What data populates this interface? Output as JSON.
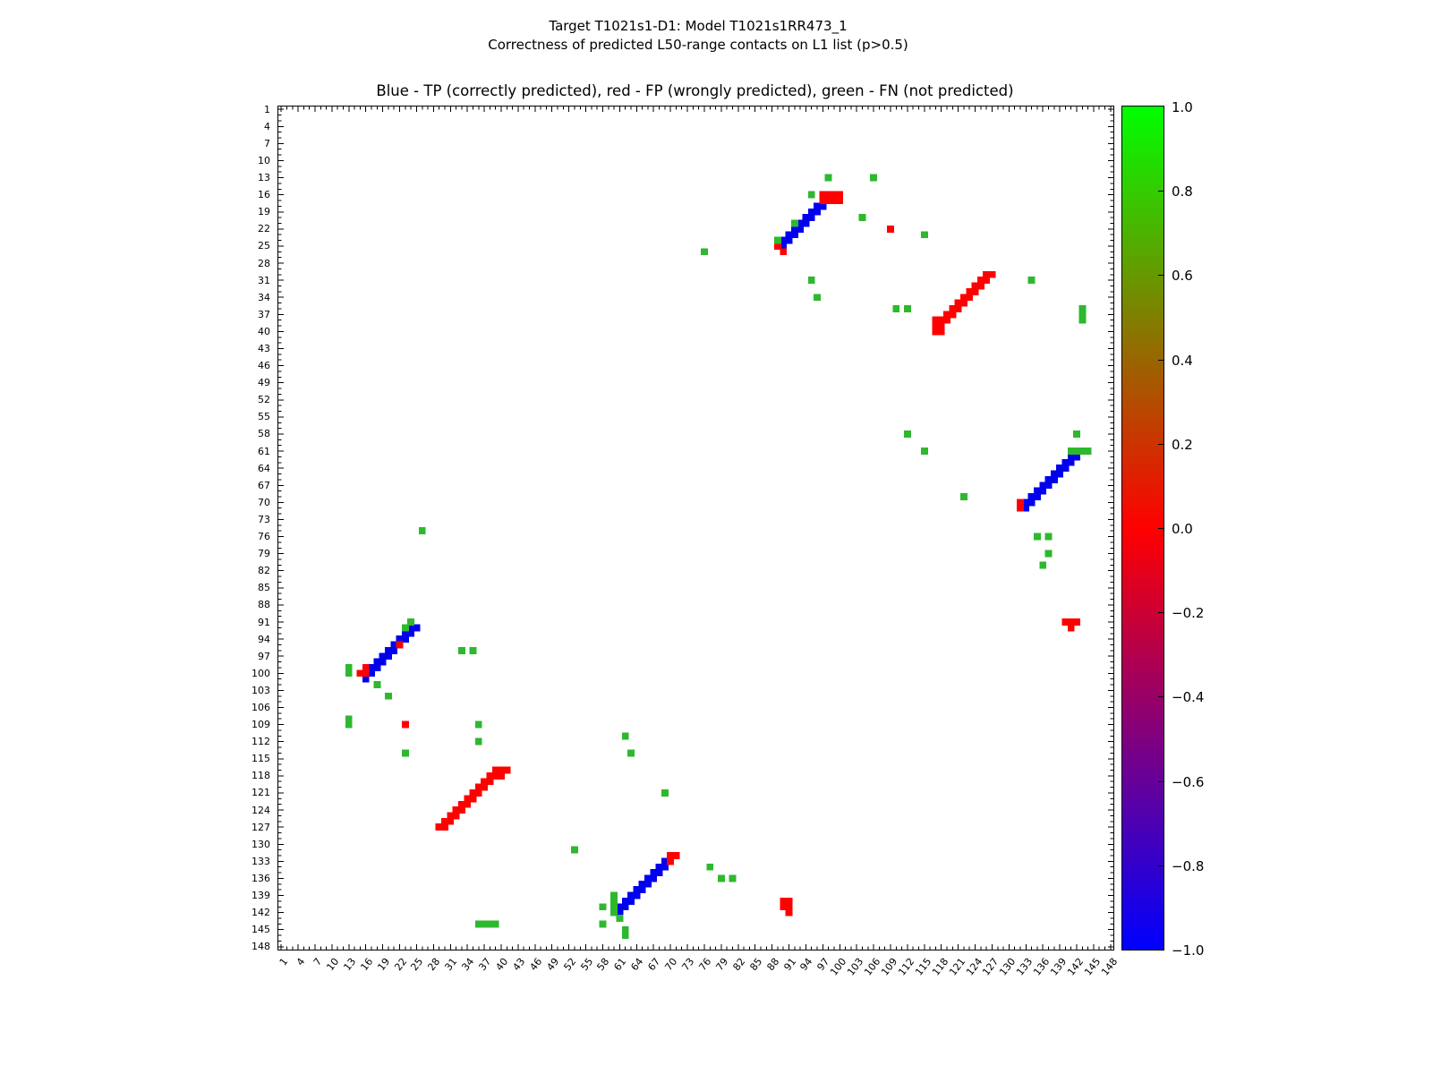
{
  "figure": {
    "title_line1": "Target T1021s1-D1: Model T1021s1RR473_1",
    "title_line2": "Correctness of predicted L50-range contacts on L1 list (p>0.5)"
  },
  "chart_data": {
    "type": "scatter",
    "subtype": "contact-map",
    "title": "Blue - TP (correctly predicted), red - FP (wrongly predicted), green - FN (not predicted)",
    "xlabel": "",
    "ylabel": "",
    "x_range": [
      1,
      148
    ],
    "y_range": [
      1,
      148
    ],
    "y_axis_inverted": true,
    "grid": false,
    "marker": "square",
    "axis_tick_labels": [
      1,
      4,
      7,
      10,
      13,
      16,
      19,
      22,
      25,
      28,
      31,
      34,
      37,
      40,
      43,
      46,
      49,
      52,
      55,
      58,
      61,
      64,
      67,
      70,
      73,
      76,
      79,
      82,
      85,
      88,
      91,
      94,
      97,
      100,
      103,
      106,
      109,
      112,
      115,
      118,
      121,
      124,
      127,
      130,
      133,
      136,
      139,
      142,
      145,
      148
    ],
    "series": [
      {
        "name": "TP (correctly predicted)",
        "key": "tp",
        "color": "#0000ee",
        "points": [
          [
            97,
            18
          ],
          [
            96,
            18
          ],
          [
            96,
            19
          ],
          [
            95,
            19
          ],
          [
            95,
            20
          ],
          [
            94,
            20
          ],
          [
            94,
            21
          ],
          [
            93,
            21
          ],
          [
            93,
            22
          ],
          [
            92,
            22
          ],
          [
            92,
            23
          ],
          [
            91,
            23
          ],
          [
            91,
            24
          ],
          [
            90,
            24
          ],
          [
            90,
            25
          ],
          [
            142,
            62
          ],
          [
            141,
            62
          ],
          [
            141,
            63
          ],
          [
            140,
            63
          ],
          [
            140,
            64
          ],
          [
            139,
            64
          ],
          [
            139,
            65
          ],
          [
            138,
            65
          ],
          [
            138,
            66
          ],
          [
            137,
            66
          ],
          [
            137,
            67
          ],
          [
            136,
            67
          ],
          [
            136,
            68
          ],
          [
            135,
            68
          ],
          [
            135,
            69
          ],
          [
            134,
            69
          ],
          [
            134,
            70
          ],
          [
            133,
            70
          ],
          [
            133,
            71
          ],
          [
            25,
            92
          ],
          [
            24,
            92
          ],
          [
            24,
            93
          ],
          [
            23,
            93
          ],
          [
            23,
            94
          ],
          [
            22,
            94
          ],
          [
            22,
            95
          ],
          [
            21,
            95
          ],
          [
            21,
            96
          ],
          [
            20,
            96
          ],
          [
            20,
            97
          ],
          [
            19,
            97
          ],
          [
            19,
            98
          ],
          [
            18,
            98
          ],
          [
            18,
            99
          ],
          [
            17,
            99
          ],
          [
            17,
            100
          ],
          [
            16,
            100
          ],
          [
            16,
            101
          ],
          [
            69,
            133
          ],
          [
            69,
            134
          ],
          [
            68,
            134
          ],
          [
            68,
            135
          ],
          [
            67,
            135
          ],
          [
            67,
            136
          ],
          [
            66,
            136
          ],
          [
            66,
            137
          ],
          [
            65,
            137
          ],
          [
            65,
            138
          ],
          [
            64,
            138
          ],
          [
            64,
            139
          ],
          [
            63,
            139
          ],
          [
            63,
            140
          ],
          [
            62,
            140
          ],
          [
            62,
            141
          ],
          [
            61,
            141
          ],
          [
            61,
            142
          ]
        ]
      },
      {
        "name": "FP (wrongly predicted)",
        "key": "fp",
        "color": "#ff0000",
        "points": [
          [
            97,
            16
          ],
          [
            98,
            16
          ],
          [
            99,
            16
          ],
          [
            100,
            16
          ],
          [
            97,
            17
          ],
          [
            98,
            17
          ],
          [
            99,
            17
          ],
          [
            100,
            17
          ],
          [
            89,
            25
          ],
          [
            90,
            26
          ],
          [
            109,
            22
          ],
          [
            127,
            30
          ],
          [
            126,
            30
          ],
          [
            126,
            31
          ],
          [
            125,
            31
          ],
          [
            125,
            32
          ],
          [
            124,
            32
          ],
          [
            124,
            33
          ],
          [
            123,
            33
          ],
          [
            123,
            34
          ],
          [
            122,
            34
          ],
          [
            122,
            35
          ],
          [
            121,
            35
          ],
          [
            121,
            36
          ],
          [
            120,
            36
          ],
          [
            120,
            37
          ],
          [
            119,
            37
          ],
          [
            119,
            38
          ],
          [
            118,
            38
          ],
          [
            117,
            38
          ],
          [
            118,
            39
          ],
          [
            117,
            39
          ],
          [
            118,
            40
          ],
          [
            117,
            40
          ],
          [
            132,
            70
          ],
          [
            132,
            71
          ],
          [
            140,
            91
          ],
          [
            141,
            91
          ],
          [
            142,
            91
          ],
          [
            141,
            92
          ],
          [
            22,
            95
          ],
          [
            16,
            99
          ],
          [
            16,
            100
          ],
          [
            15,
            100
          ],
          [
            23,
            109
          ],
          [
            41,
            117
          ],
          [
            40,
            117
          ],
          [
            39,
            117
          ],
          [
            40,
            118
          ],
          [
            39,
            118
          ],
          [
            38,
            118
          ],
          [
            38,
            119
          ],
          [
            37,
            119
          ],
          [
            37,
            120
          ],
          [
            36,
            120
          ],
          [
            36,
            121
          ],
          [
            35,
            121
          ],
          [
            35,
            122
          ],
          [
            34,
            122
          ],
          [
            34,
            123
          ],
          [
            33,
            123
          ],
          [
            33,
            124
          ],
          [
            32,
            124
          ],
          [
            32,
            125
          ],
          [
            31,
            125
          ],
          [
            31,
            126
          ],
          [
            30,
            126
          ],
          [
            30,
            127
          ],
          [
            29,
            127
          ],
          [
            70,
            132
          ],
          [
            71,
            132
          ],
          [
            70,
            133
          ],
          [
            90,
            140
          ],
          [
            91,
            140
          ],
          [
            90,
            141
          ],
          [
            91,
            141
          ],
          [
            91,
            142
          ]
        ]
      },
      {
        "name": "FN (not predicted)",
        "key": "fn",
        "color": "#2eb82e",
        "points": [
          [
            98,
            13
          ],
          [
            106,
            13
          ],
          [
            95,
            16
          ],
          [
            92,
            21
          ],
          [
            104,
            20
          ],
          [
            115,
            23
          ],
          [
            89,
            24
          ],
          [
            76,
            26
          ],
          [
            95,
            31
          ],
          [
            96,
            34
          ],
          [
            134,
            31
          ],
          [
            110,
            36
          ],
          [
            112,
            36
          ],
          [
            143,
            36
          ],
          [
            143,
            37
          ],
          [
            143,
            38
          ],
          [
            142,
            58
          ],
          [
            112,
            58
          ],
          [
            115,
            61
          ],
          [
            141,
            61
          ],
          [
            142,
            61
          ],
          [
            143,
            61
          ],
          [
            144,
            61
          ],
          [
            122,
            69
          ],
          [
            135,
            76
          ],
          [
            137,
            76
          ],
          [
            137,
            79
          ],
          [
            136,
            81
          ],
          [
            24,
            91
          ],
          [
            23,
            92
          ],
          [
            33,
            96
          ],
          [
            35,
            96
          ],
          [
            13,
            99
          ],
          [
            13,
            100
          ],
          [
            18,
            102
          ],
          [
            20,
            104
          ],
          [
            13,
            108
          ],
          [
            13,
            109
          ],
          [
            36,
            109
          ],
          [
            36,
            112
          ],
          [
            23,
            114
          ],
          [
            26,
            75
          ],
          [
            62,
            111
          ],
          [
            63,
            114
          ],
          [
            69,
            121
          ],
          [
            53,
            131
          ],
          [
            77,
            134
          ],
          [
            79,
            136
          ],
          [
            81,
            136
          ],
          [
            60,
            139
          ],
          [
            60,
            140
          ],
          [
            60,
            141
          ],
          [
            60,
            142
          ],
          [
            61,
            143
          ],
          [
            58,
            141
          ],
          [
            58,
            144
          ],
          [
            62,
            145
          ],
          [
            62,
            146
          ],
          [
            36,
            144
          ],
          [
            37,
            144
          ],
          [
            38,
            144
          ],
          [
            39,
            144
          ]
        ]
      }
    ],
    "colorbar": {
      "cmap_colors": [
        "#0000ff",
        "#ff0000",
        "#00ff00"
      ],
      "range": [
        -1.0,
        1.0
      ],
      "tick_labels": [
        "1.0",
        "0.8",
        "0.6",
        "0.4",
        "0.2",
        "0.0",
        "−0.2",
        "−0.4",
        "−0.6",
        "−0.8",
        "−1.0"
      ]
    }
  }
}
